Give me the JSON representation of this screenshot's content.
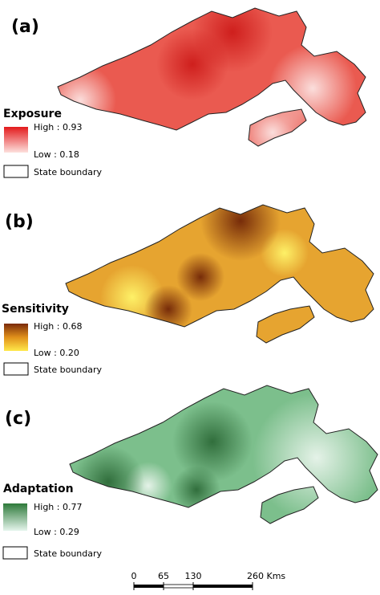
{
  "panels": [
    {
      "label": "(a)",
      "title": "Exposure",
      "high": "High : 0.93",
      "low": "Low : 0.18",
      "boundary": "State boundary"
    },
    {
      "label": "(b)",
      "title": "Sensitivity",
      "high": "High : 0.68",
      "low": "Low : 0.20",
      "boundary": "State boundary"
    },
    {
      "label": "(c)",
      "title": "Adaptation",
      "high": "High : 0.77",
      "low": "Low : 0.29",
      "boundary": "State boundary"
    }
  ],
  "scale_bar": {
    "labels": [
      "0",
      "65",
      "130",
      "260 Kms"
    ]
  }
}
